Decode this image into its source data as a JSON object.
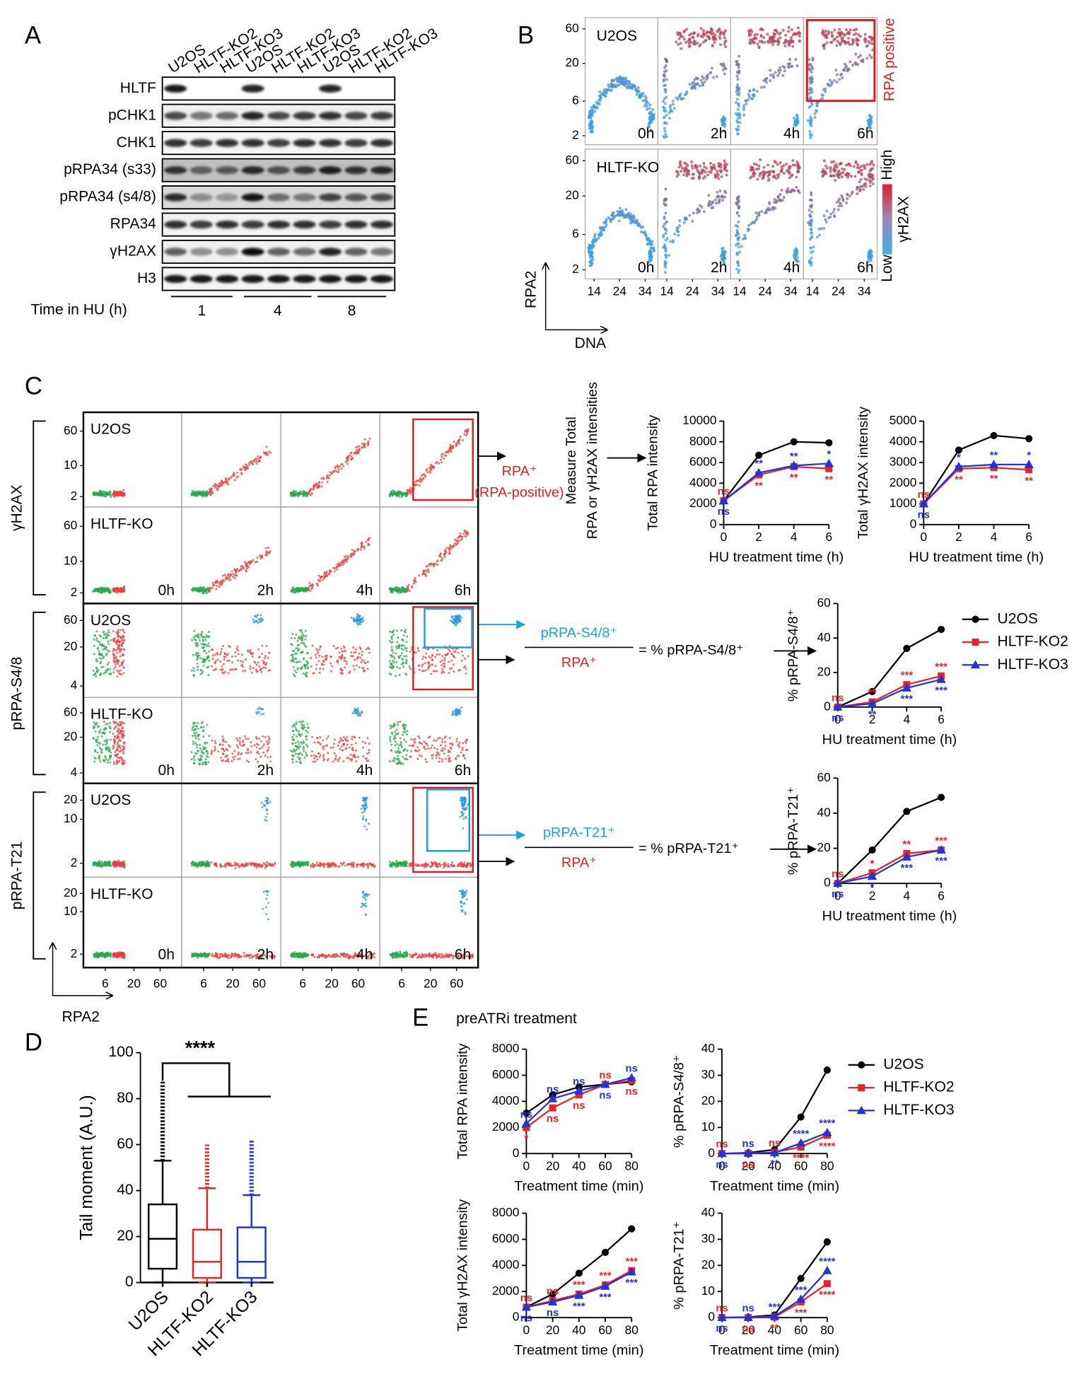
{
  "panel_a": {
    "label": "A",
    "lanes": [
      "U2OS",
      "HLTF-KO2",
      "HLTF-KO3",
      "U2OS",
      "HLTF-KO2",
      "HLTF-KO3",
      "U2OS",
      "HLTF-KO2",
      "HLTF-KO3"
    ],
    "rows": [
      "HLTF",
      "pCHK1",
      "CHK1",
      "pRPA34 (s33)",
      "pRPA34 (s4/8)",
      "RPA34",
      "γH2AX",
      "H3"
    ],
    "time_label": "Time in HU (h)",
    "time_groups": [
      "1",
      "4",
      "8"
    ]
  },
  "panel_b": {
    "label": "B",
    "rows": [
      "U2OS",
      "HLTF-KO"
    ],
    "times": [
      "0h",
      "2h",
      "4h",
      "6h"
    ],
    "ylim": [
      1.5,
      86
    ],
    "y_log": true,
    "yticks": [
      2,
      6,
      20,
      60
    ],
    "xlim": [
      10.5,
      39
    ],
    "xticks": [
      14,
      24,
      34
    ],
    "rpa_positive": "RPA positive",
    "colorbar": {
      "high": "High",
      "low": "Low",
      "label": "γH2AX"
    },
    "ylabel": "RPA2",
    "xlabel": "DNA"
  },
  "panel_c": {
    "label": "C",
    "groups": [
      {
        "name": "γH2AX",
        "ylim": [
          1.16,
          160
        ],
        "yticks": [
          2,
          10,
          60
        ]
      },
      {
        "name": "pRPA-S4/8",
        "ylim": [
          2.5,
          120
        ],
        "yticks": [
          4,
          20,
          60
        ]
      },
      {
        "name": "pRPA-T21",
        "ylim": [
          1.2,
          37
        ],
        "yticks": [
          2,
          10,
          20
        ]
      }
    ],
    "rows": [
      "U2OS",
      "HLTF-KO"
    ],
    "times": [
      "0h",
      "2h",
      "4h",
      "6h"
    ],
    "x_log": true,
    "y_log": true,
    "xlim": [
      2.4,
      148
    ],
    "xticks": [
      6,
      20,
      60
    ],
    "xlabel": "RPA2",
    "flow": {
      "rpa_pos": "RPA⁺",
      "rpa_pos_note": "(RPA-positive)",
      "measure": [
        "Measure Total",
        "RPA or γH2AX intensities"
      ],
      "s48_num": "pRPA-S4/8⁺",
      "s48_den": "RPA⁺",
      "s48_eq": "= % pRPA-S4/8⁺",
      "t21_num": "pRPA-T21⁺",
      "t21_den": "RPA⁺",
      "t21_eq": "= % pRPA-T21⁺"
    }
  },
  "panel_d": {
    "label": "D"
  },
  "panel_e": {
    "label": "E",
    "title": "preATRi treatment"
  },
  "chart_data": [
    {
      "type": "line",
      "ylabel": "Total RPA intensity",
      "xlabel": "HU treatment time (h)",
      "x": [
        0,
        2,
        4,
        6
      ],
      "xlim": [
        0,
        6
      ],
      "xticks": [
        0,
        2,
        4,
        6
      ],
      "ylim": [
        0,
        10000
      ],
      "yticks": [
        0,
        2000,
        4000,
        6000,
        8000,
        10000
      ],
      "series": [
        {
          "color": "#000000",
          "marker": "circle",
          "values": [
            2300,
            6700,
            8000,
            7900
          ]
        },
        {
          "color": "#ee2222",
          "marker": "square",
          "values": [
            2300,
            4800,
            5600,
            5400
          ],
          "sig": [
            "ns",
            "**",
            "**",
            "**"
          ]
        },
        {
          "color": "#2233dd",
          "marker": "triangle",
          "values": [
            2300,
            5000,
            5700,
            5900
          ],
          "sig": [
            "ns",
            "**",
            "**",
            "*"
          ]
        }
      ]
    },
    {
      "type": "line",
      "ylabel": "Total γH2AX intensity",
      "xlabel": "HU treatment time (h)",
      "x": [
        0,
        2,
        4,
        6
      ],
      "xlim": [
        0,
        6
      ],
      "xticks": [
        0,
        2,
        4,
        6
      ],
      "ylim": [
        0,
        5000
      ],
      "yticks": [
        0,
        1000,
        2000,
        3000,
        4000,
        5000
      ],
      "series": [
        {
          "color": "#000000",
          "marker": "circle",
          "values": [
            1000,
            3600,
            4300,
            4150
          ]
        },
        {
          "color": "#ee2222",
          "marker": "square",
          "values": [
            1000,
            2700,
            2750,
            2650
          ],
          "sig": [
            "ns",
            "**",
            "**",
            "**"
          ]
        },
        {
          "color": "#2233dd",
          "marker": "triangle",
          "values": [
            1000,
            2800,
            2900,
            2900
          ],
          "sig": [
            "ns",
            "*",
            "**",
            "*"
          ]
        }
      ]
    },
    {
      "type": "line",
      "ylabel": "% pRPA-S4/8⁺",
      "xlabel": "HU treatment time (h)",
      "x": [
        0,
        2,
        4,
        6
      ],
      "xlim": [
        0,
        6
      ],
      "xticks": [
        0,
        2,
        4,
        6
      ],
      "ylim": [
        0,
        60
      ],
      "yticks": [
        0,
        20,
        40,
        60
      ],
      "legend": "right",
      "series": [
        {
          "name": "U2OS",
          "color": "#000000",
          "marker": "circle",
          "values": [
            0,
            9,
            34,
            45
          ]
        },
        {
          "name": "HLTF-KO2",
          "color": "#ee2222",
          "marker": "square",
          "values": [
            0,
            3,
            13,
            18
          ],
          "sig": [
            "ns",
            "**",
            "***",
            "***"
          ]
        },
        {
          "name": "HLTF-KO3",
          "color": "#2233dd",
          "marker": "triangle",
          "values": [
            0,
            2,
            11,
            16
          ],
          "sig": [
            "ns",
            "**",
            "***",
            "***"
          ]
        }
      ]
    },
    {
      "type": "line",
      "ylabel": "% pRPA-T21⁺",
      "xlabel": "HU treatment time (h)",
      "x": [
        0,
        2,
        4,
        6
      ],
      "xlim": [
        0,
        6
      ],
      "xticks": [
        0,
        2,
        4,
        6
      ],
      "ylim": [
        0,
        60
      ],
      "yticks": [
        0,
        20,
        40,
        60
      ],
      "series": [
        {
          "color": "#000000",
          "marker": "circle",
          "values": [
            0,
            19,
            41,
            49
          ]
        },
        {
          "color": "#ee2222",
          "marker": "square",
          "values": [
            0,
            6,
            17,
            19
          ],
          "sig": [
            "ns",
            "*",
            "**",
            "***"
          ]
        },
        {
          "color": "#2233dd",
          "marker": "triangle",
          "values": [
            0,
            4,
            15,
            19
          ],
          "sig": [
            "ns",
            "*",
            "***",
            "***"
          ]
        }
      ]
    },
    {
      "type": "box",
      "ylabel": "Tail moment (A.U.)",
      "categories": [
        "U2OS",
        "HLTF-KO2",
        "HLTF-KO3"
      ],
      "ylim": [
        0,
        100
      ],
      "yticks": [
        0,
        20,
        40,
        60,
        80,
        100
      ],
      "annotation": "****",
      "boxes": [
        {
          "color": "#000000",
          "whisker_low": 0,
          "q1": 6,
          "median": 19,
          "q3": 34,
          "whisker_high": 53,
          "max": 88
        },
        {
          "color": "#ee2222",
          "whisker_low": 0,
          "q1": 2,
          "median": 9,
          "q3": 23,
          "whisker_high": 41,
          "max": 60
        },
        {
          "color": "#2233dd",
          "whisker_low": 0,
          "q1": 2,
          "median": 9,
          "q3": 24,
          "whisker_high": 38,
          "max": 62
        }
      ]
    },
    {
      "type": "line",
      "ylabel": "Total RPA intensity",
      "xlabel": "Treatment time (min)",
      "x": [
        0,
        20,
        40,
        60,
        80
      ],
      "xlim": [
        0,
        80
      ],
      "xticks": [
        0,
        20,
        40,
        60,
        80
      ],
      "ylim": [
        0,
        8000
      ],
      "yticks": [
        0,
        2000,
        4000,
        6000,
        8000
      ],
      "series": [
        {
          "color": "#000000",
          "marker": "circle",
          "values": [
            3100,
            4500,
            5100,
            5300,
            5500
          ]
        },
        {
          "color": "#ee2222",
          "marker": "square",
          "values": [
            2000,
            3500,
            4500,
            5300,
            5600
          ],
          "sig": [
            "*",
            "ns",
            "ns",
            "ns",
            "ns"
          ]
        },
        {
          "color": "#2233dd",
          "marker": "triangle",
          "values": [
            2300,
            4200,
            4800,
            5300,
            5800
          ],
          "sig": [
            "ns",
            "ns",
            "ns",
            "ns",
            "ns"
          ]
        }
      ]
    },
    {
      "type": "line",
      "ylabel": "% pRPA-S4/8⁺",
      "xlabel": "Treatment time (min)",
      "x": [
        0,
        20,
        40,
        60,
        80
      ],
      "xlim": [
        0,
        80
      ],
      "xticks": [
        0,
        20,
        40,
        60,
        80
      ],
      "ylim": [
        0,
        40
      ],
      "yticks": [
        0,
        10,
        20,
        30,
        40
      ],
      "legend": "right",
      "series": [
        {
          "name": "U2OS",
          "color": "#000000",
          "marker": "circle",
          "values": [
            0,
            0.3,
            1.5,
            14,
            32
          ]
        },
        {
          "name": "HLTF-KO2",
          "color": "#ee2222",
          "marker": "square",
          "values": [
            0,
            0,
            0.5,
            2.5,
            7
          ],
          "sig": [
            "ns",
            "ns",
            "ns",
            "****",
            "****"
          ]
        },
        {
          "name": "HLTF-KO3",
          "color": "#2233dd",
          "marker": "triangle",
          "values": [
            0,
            0.2,
            0.3,
            4,
            8
          ],
          "sig": [
            "ns",
            "ns",
            "**",
            "****",
            "****"
          ]
        }
      ]
    },
    {
      "type": "line",
      "ylabel": "Total γH2AX intensity",
      "xlabel": "Treatment time (min)",
      "x": [
        0,
        20,
        40,
        60,
        80
      ],
      "xlim": [
        0,
        80
      ],
      "xticks": [
        0,
        20,
        40,
        60,
        80
      ],
      "ylim": [
        0,
        8000
      ],
      "yticks": [
        0,
        2000,
        4000,
        6000,
        8000
      ],
      "series": [
        {
          "color": "#000000",
          "marker": "circle",
          "values": [
            800,
            1800,
            3400,
            5000,
            6800
          ]
        },
        {
          "color": "#ee2222",
          "marker": "square",
          "values": [
            800,
            1300,
            1800,
            2500,
            3600
          ],
          "sig": [
            "ns",
            "ns",
            "***",
            "***",
            "***"
          ]
        },
        {
          "color": "#2233dd",
          "marker": "triangle",
          "values": [
            800,
            1200,
            1700,
            2400,
            3500
          ],
          "sig": [
            "ns",
            "ns",
            "***",
            "***",
            "***"
          ]
        }
      ]
    },
    {
      "type": "line",
      "ylabel": "% pRPA-T21⁺",
      "xlabel": "Treatment time (min)",
      "x": [
        0,
        20,
        40,
        60,
        80
      ],
      "xlim": [
        0,
        80
      ],
      "xticks": [
        0,
        20,
        40,
        60,
        80
      ],
      "ylim": [
        0,
        40
      ],
      "yticks": [
        0,
        10,
        20,
        30,
        40
      ],
      "series": [
        {
          "color": "#000000",
          "marker": "circle",
          "values": [
            0,
            0.2,
            1,
            15,
            29
          ]
        },
        {
          "color": "#ee2222",
          "marker": "square",
          "values": [
            0,
            0,
            0.2,
            6,
            13
          ],
          "sig": [
            "ns",
            "ns",
            "**",
            "***",
            "****"
          ]
        },
        {
          "color": "#2233dd",
          "marker": "triangle",
          "values": [
            0,
            0.1,
            0.5,
            7,
            18
          ],
          "sig": [
            "ns",
            "ns",
            "***",
            "***",
            "****"
          ]
        }
      ]
    }
  ]
}
